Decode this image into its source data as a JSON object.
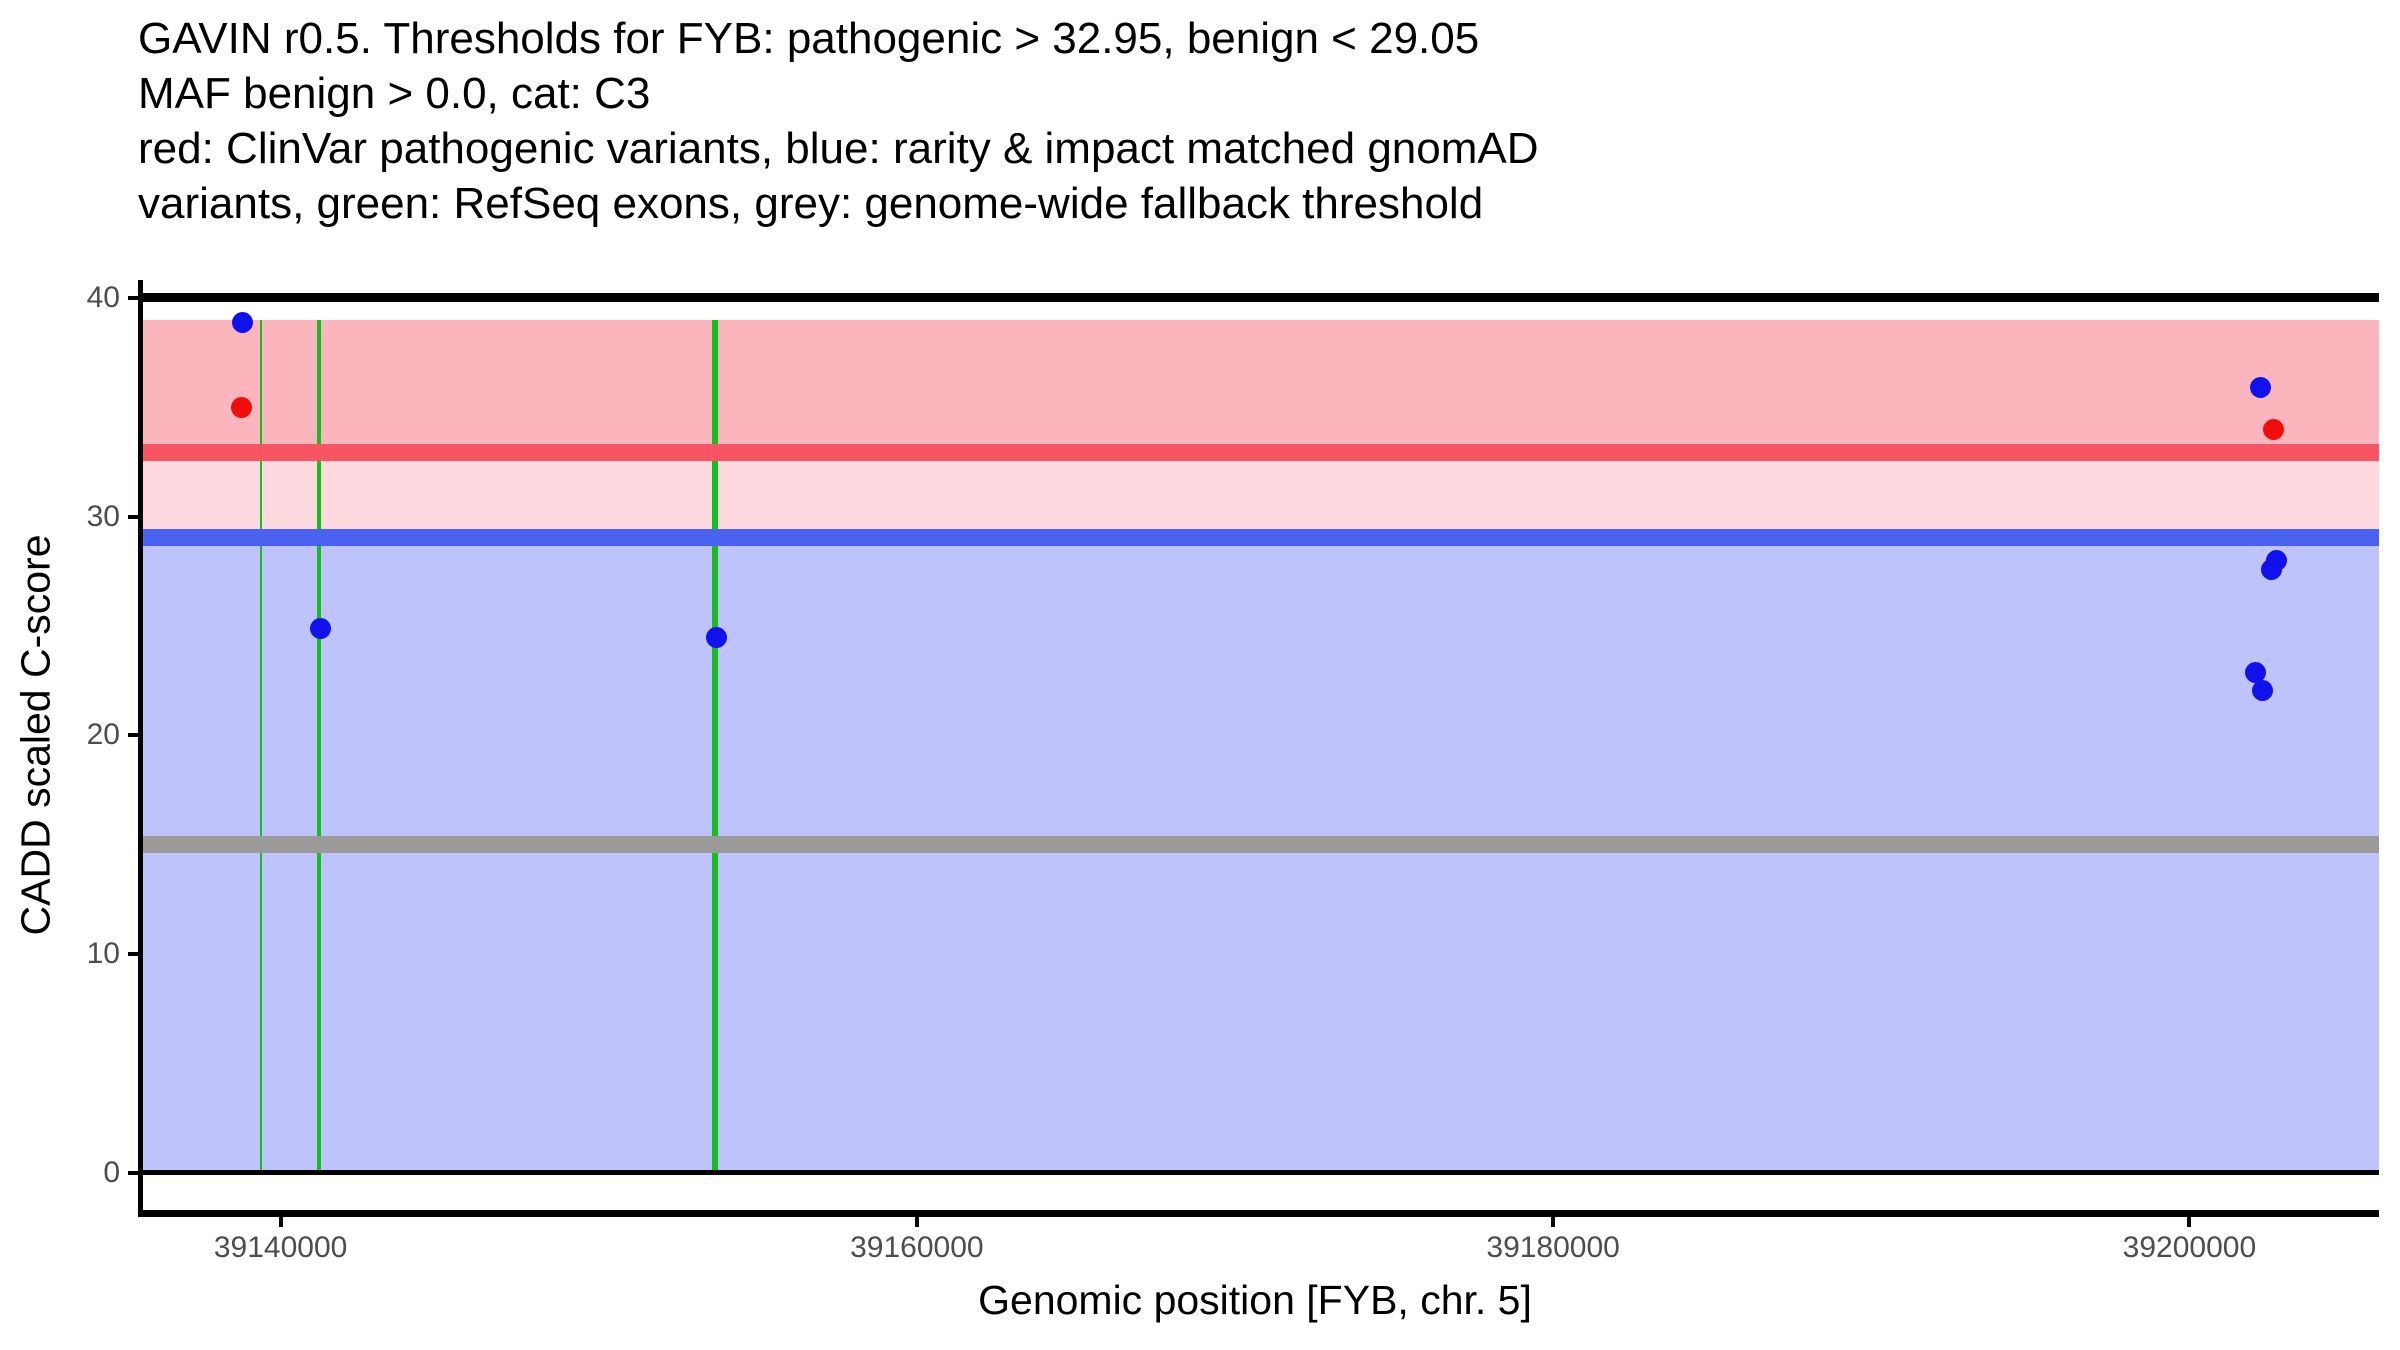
{
  "chart_data": {
    "type": "scatter",
    "title_lines": [
      "GAVIN r0.5. Thresholds for FYB: pathogenic > 32.95, benign < 29.05",
      "MAF benign > 0.0, cat: C3",
      "red: ClinVar pathogenic variants, blue: rarity & impact matched gnomAD",
      "variants, green: RefSeq exons, grey: genome-wide fallback threshold"
    ],
    "xlabel": "Genomic position [FYB, chr. 5]",
    "ylabel": "CADD scaled C-score",
    "axes": {
      "xlim": [
        39135580,
        39205960
      ],
      "ylim": [
        -1.83,
        40.82
      ],
      "x_ticks": [
        39140000,
        39160000,
        39180000,
        39200000
      ],
      "x_tick_labels": [
        "39140000",
        "39160000",
        "39180000",
        "39200000"
      ],
      "y_ticks": [
        0,
        10,
        20,
        30,
        40
      ],
      "y_tick_labels": [
        "0",
        "10",
        "20",
        "30",
        "40"
      ],
      "grid": "off",
      "legend": "none"
    },
    "regions": [
      {
        "name": "pathogenic-region",
        "from": 32.95,
        "to": 39.0,
        "color": "#FBB6BD"
      },
      {
        "name": "intermediate-region",
        "from": 29.05,
        "to": 32.95,
        "color": "#FDD8DE"
      },
      {
        "name": "benign-region",
        "from": 0,
        "to": 29.05,
        "color": "#BEC3FB"
      }
    ],
    "threshold_lines": [
      {
        "name": "pathogenic-threshold-line",
        "y": 32.95,
        "color": "#F85564"
      },
      {
        "name": "benign-threshold-line",
        "y": 29.05,
        "color": "#4A62F0"
      },
      {
        "name": "fallback-threshold-line",
        "y": 15.0,
        "color": "#9A9A98"
      }
    ],
    "frame_lines": [
      {
        "name": "frame-line-top",
        "y": 40
      },
      {
        "name": "frame-line-zero",
        "y": 0
      }
    ],
    "exons": [
      {
        "name": "refseq-exon",
        "start": 39139353,
        "end": 39139416
      },
      {
        "name": "refseq-exon",
        "start": 39141154,
        "end": 39141280
      },
      {
        "name": "refseq-exon",
        "start": 39153563,
        "end": 39153753
      }
    ],
    "exon_color": "#16BD1E",
    "series_colors": {
      "clinvar": "#F20D0D",
      "gnomad": "#1111EE"
    },
    "points": [
      {
        "x": 39138808,
        "y": 38.9,
        "series": "gnomad"
      },
      {
        "x": 39138777,
        "y": 35.0,
        "series": "clinvar"
      },
      {
        "x": 39141239,
        "y": 24.9,
        "series": "gnomad"
      },
      {
        "x": 39153689,
        "y": 24.5,
        "series": "gnomad"
      },
      {
        "x": 39202223,
        "y": 35.9,
        "series": "gnomad"
      },
      {
        "x": 39202641,
        "y": 34.0,
        "series": "clinvar"
      },
      {
        "x": 39202726,
        "y": 28.0,
        "series": "gnomad"
      },
      {
        "x": 39202590,
        "y": 27.6,
        "series": "gnomad"
      },
      {
        "x": 39202088,
        "y": 22.9,
        "series": "gnomad"
      },
      {
        "x": 39202308,
        "y": 22.05,
        "series": "gnomad"
      }
    ],
    "colors": {
      "axis_line": "#000000",
      "tick_text": "#4D4D4D",
      "title_text": "#000000"
    }
  }
}
